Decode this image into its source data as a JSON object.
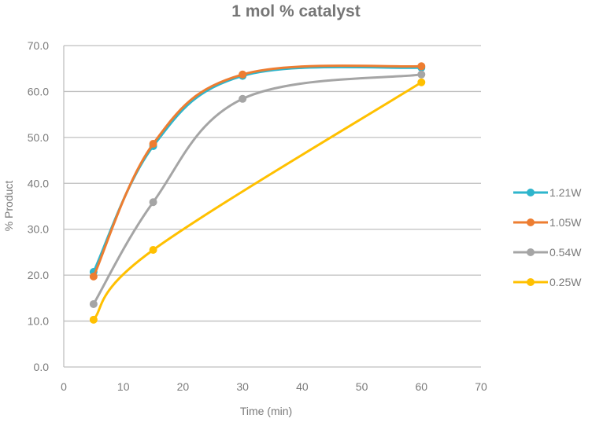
{
  "chart_data": {
    "type": "line",
    "title": "1 mol % catalyst",
    "xlabel": "Time (min)",
    "ylabel": "% Product",
    "xlim": [
      0,
      70
    ],
    "ylim": [
      0,
      70
    ],
    "x_ticks": [
      "0",
      "10",
      "20",
      "30",
      "40",
      "50",
      "60",
      "70"
    ],
    "y_ticks": [
      "0.0",
      "10.0",
      "20.0",
      "30.0",
      "40.0",
      "50.0",
      "60.0",
      "70.0"
    ],
    "grid": "horizontal",
    "legend_position": "right",
    "smoothed": true,
    "x": [
      5,
      15,
      30,
      60
    ],
    "series": [
      {
        "name": "1.21W",
        "color": "#2eb5cc",
        "values": [
          20.7,
          48.1,
          63.4,
          65.2
        ]
      },
      {
        "name": "1.05W",
        "color": "#ed7d31",
        "values": [
          19.7,
          48.6,
          63.7,
          65.5
        ]
      },
      {
        "name": "0.54W",
        "color": "#a5a5a5",
        "values": [
          13.7,
          35.9,
          58.4,
          63.7
        ]
      },
      {
        "name": "0.25W",
        "color": "#ffc000",
        "values": [
          10.3,
          25.5,
          null,
          62.0
        ]
      }
    ]
  }
}
